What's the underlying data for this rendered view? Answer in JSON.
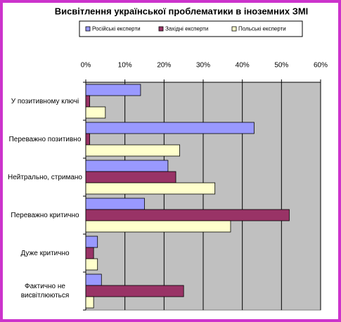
{
  "chart_data": {
    "type": "bar",
    "orientation": "horizontal",
    "title": "Висвітлення української проблематики в іноземних ЗМІ",
    "categories": [
      "У позитивному ключі",
      "Переважно позитивно",
      "Нейтрально, стримано",
      "Переважно критично",
      "Дуже критично",
      "Фактично не висвітлюються"
    ],
    "series": [
      {
        "name": "Російські експерти",
        "color": "#9999ff",
        "values": [
          14,
          43,
          21,
          15,
          3,
          4
        ]
      },
      {
        "name": "Західні експерти",
        "color": "#993366",
        "values": [
          1,
          1,
          23,
          52,
          2,
          25
        ]
      },
      {
        "name": "Польські експерти",
        "color": "#ffffcc",
        "values": [
          5,
          24,
          33,
          37,
          3,
          2
        ]
      }
    ],
    "xlim": [
      0,
      60
    ],
    "xticks": [
      {
        "value": 0,
        "label": "0%"
      },
      {
        "value": 10,
        "label": "10%"
      },
      {
        "value": 20,
        "label": "20%"
      },
      {
        "value": 30,
        "label": "30%"
      },
      {
        "value": 40,
        "label": "40%"
      },
      {
        "value": 50,
        "label": "50%"
      },
      {
        "value": 60,
        "label": "60%"
      }
    ],
    "grid": true,
    "plot_background": "#c0c0c0"
  }
}
